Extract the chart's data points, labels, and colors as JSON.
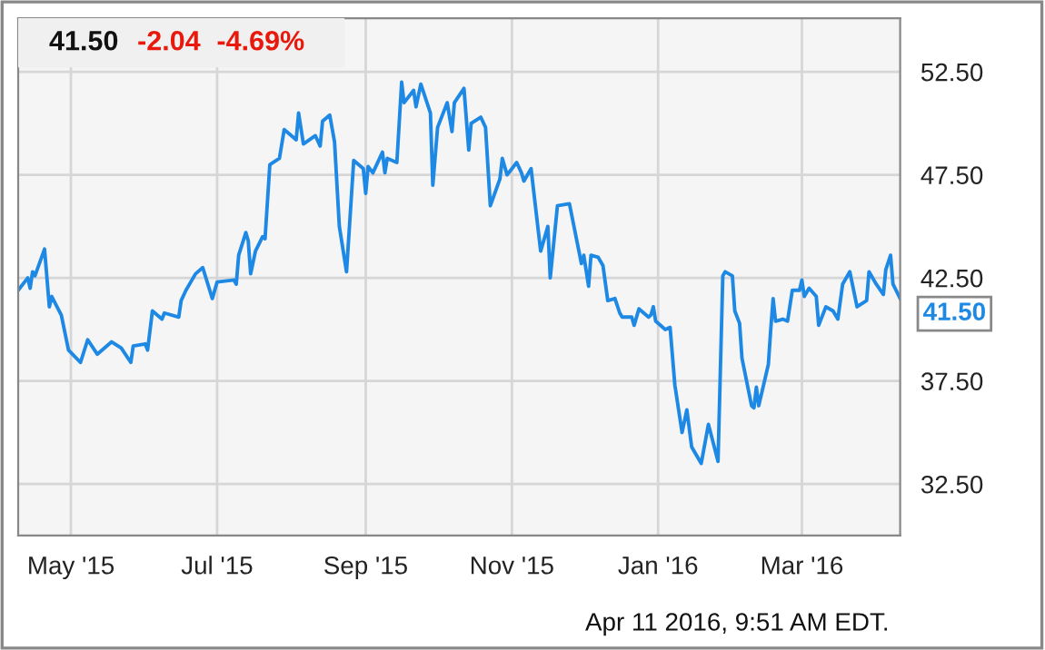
{
  "chart_data": {
    "type": "line",
    "x": [
      "2015-04-09",
      "2015-04-13",
      "2015-04-14",
      "2015-04-15",
      "2015-04-16",
      "2015-04-20",
      "2015-04-22",
      "2015-04-23",
      "2015-04-27",
      "2015-04-30",
      "2015-05-05",
      "2015-05-08",
      "2015-05-12",
      "2015-05-18",
      "2015-05-22",
      "2015-05-26",
      "2015-05-27",
      "2015-06-01",
      "2015-06-02",
      "2015-06-04",
      "2015-06-08",
      "2015-06-09",
      "2015-06-15",
      "2015-06-16",
      "2015-06-18",
      "2015-06-22",
      "2015-06-25",
      "2015-06-29",
      "2015-07-01",
      "2015-07-08",
      "2015-07-09",
      "2015-07-10",
      "2015-07-13",
      "2015-07-14",
      "2015-07-15",
      "2015-07-17",
      "2015-07-20",
      "2015-07-21",
      "2015-07-23",
      "2015-07-27",
      "2015-07-29",
      "2015-08-03",
      "2015-08-04",
      "2015-08-06",
      "2015-08-11",
      "2015-08-13",
      "2015-08-14",
      "2015-08-17",
      "2015-08-19",
      "2015-08-21",
      "2015-08-24",
      "2015-08-27",
      "2015-08-31",
      "2015-09-01",
      "2015-09-02",
      "2015-09-04",
      "2015-09-08",
      "2015-09-09",
      "2015-09-10",
      "2015-09-14",
      "2015-09-16",
      "2015-09-17",
      "2015-09-21",
      "2015-09-22",
      "2015-09-24",
      "2015-09-28",
      "2015-09-29",
      "2015-10-01",
      "2015-10-05",
      "2015-10-07",
      "2015-10-08",
      "2015-10-12",
      "2015-10-14",
      "2015-10-15",
      "2015-10-19",
      "2015-10-21",
      "2015-10-23",
      "2015-10-27",
      "2015-10-28",
      "2015-10-30",
      "2015-11-03",
      "2015-11-05",
      "2015-11-06",
      "2015-11-09",
      "2015-11-13",
      "2015-11-16",
      "2015-11-17",
      "2015-11-20",
      "2015-11-25",
      "2015-11-30",
      "2015-12-01",
      "2015-12-03",
      "2015-12-04",
      "2015-12-07",
      "2015-12-09",
      "2015-12-11",
      "2015-12-14",
      "2015-12-16",
      "2015-12-17",
      "2015-12-21",
      "2015-12-22",
      "2015-12-24",
      "2015-12-28",
      "2015-12-29",
      "2015-12-30",
      "2015-12-31",
      "2016-01-04",
      "2016-01-06",
      "2016-01-08",
      "2016-01-11",
      "2016-01-13",
      "2016-01-15",
      "2016-01-19",
      "2016-01-22",
      "2016-01-26",
      "2016-01-28",
      "2016-01-29",
      "2016-02-01",
      "2016-02-02",
      "2016-02-04",
      "2016-02-05",
      "2016-02-09",
      "2016-02-10",
      "2016-02-11",
      "2016-02-12",
      "2016-02-16",
      "2016-02-17",
      "2016-02-18",
      "2016-02-19",
      "2016-02-22",
      "2016-02-24",
      "2016-02-26",
      "2016-02-29",
      "2016-03-01",
      "2016-03-02",
      "2016-03-04",
      "2016-03-07",
      "2016-03-08",
      "2016-03-11",
      "2016-03-14",
      "2016-03-16",
      "2016-03-18",
      "2016-03-21",
      "2016-03-24",
      "2016-03-28",
      "2016-03-29",
      "2016-04-01",
      "2016-04-04",
      "2016-04-05",
      "2016-04-07",
      "2016-04-08",
      "2016-04-11"
    ],
    "series": [
      {
        "color": "#1e88e5",
        "values": [
          41.9,
          42.5,
          42.0,
          42.8,
          42.6,
          43.9,
          41.1,
          41.6,
          40.7,
          39.0,
          38.4,
          39.5,
          38.8,
          39.4,
          39.1,
          38.4,
          39.2,
          39.3,
          39.0,
          40.9,
          40.5,
          40.8,
          40.6,
          41.4,
          41.9,
          42.7,
          43.0,
          41.5,
          42.3,
          42.4,
          42.2,
          43.6,
          44.7,
          44.3,
          42.7,
          43.8,
          44.5,
          44.4,
          48.0,
          48.3,
          49.7,
          49.2,
          50.5,
          49.0,
          49.4,
          48.9,
          50.1,
          50.4,
          49.1,
          45.0,
          42.8,
          48.2,
          47.8,
          46.6,
          47.9,
          47.6,
          48.6,
          47.6,
          48.3,
          48.1,
          52.0,
          51.0,
          51.6,
          50.8,
          51.9,
          50.5,
          47.0,
          49.8,
          51.0,
          49.6,
          51.0,
          51.7,
          48.7,
          50.0,
          50.3,
          49.8,
          46.0,
          47.3,
          48.3,
          47.5,
          48.1,
          47.6,
          47.2,
          47.8,
          43.8,
          45.0,
          42.5,
          46.0,
          46.1,
          43.2,
          43.6,
          42.1,
          43.6,
          43.5,
          43.1,
          41.4,
          41.5,
          40.8,
          40.6,
          40.6,
          40.2,
          41.0,
          40.6,
          40.7,
          41.1,
          40.4,
          40.0,
          40.1,
          37.3,
          35.0,
          36.1,
          34.3,
          33.5,
          35.4,
          33.6,
          42.6,
          42.8,
          42.6,
          40.9,
          40.3,
          38.6,
          36.3,
          36.2,
          37.2,
          36.3,
          38.3,
          40.0,
          41.5,
          40.4,
          40.5,
          40.4,
          41.9,
          41.9,
          42.4,
          41.6,
          42.0,
          41.6,
          40.2,
          41.1,
          40.9,
          40.5,
          42.2,
          42.8,
          41.1,
          41.4,
          42.8,
          42.2,
          41.7,
          42.9,
          43.6,
          42.2,
          41.5
        ]
      }
    ],
    "xlim": [
      "2015-04-09",
      "2016-04-11"
    ],
    "xticks": [
      {
        "value": "2015-05-01",
        "label": "May '15"
      },
      {
        "value": "2015-07-01",
        "label": "Jul '15"
      },
      {
        "value": "2015-09-01",
        "label": "Sep '15"
      },
      {
        "value": "2015-11-01",
        "label": "Nov '15"
      },
      {
        "value": "2016-01-01",
        "label": "Jan '16"
      },
      {
        "value": "2016-03-01",
        "label": "Mar '16"
      }
    ],
    "ylim": [
      30.0,
      55.1
    ],
    "yticks": [
      {
        "value": 32.5,
        "label": "32.50"
      },
      {
        "value": 37.5,
        "label": "37.50"
      },
      {
        "value": 42.5,
        "label": "42.50"
      },
      {
        "value": 47.5,
        "label": "47.50"
      },
      {
        "value": 52.5,
        "label": "52.50"
      }
    ],
    "grid": true,
    "legend": false,
    "marker": "none",
    "line_style": "solid",
    "annotations": [
      "41.50",
      "-2.04",
      "-4.69%",
      {
        "text": "41.50",
        "x": "2016-04-11",
        "y": 41.5
      },
      "Apr 11 2016, 9:51 AM EDT."
    ]
  }
}
